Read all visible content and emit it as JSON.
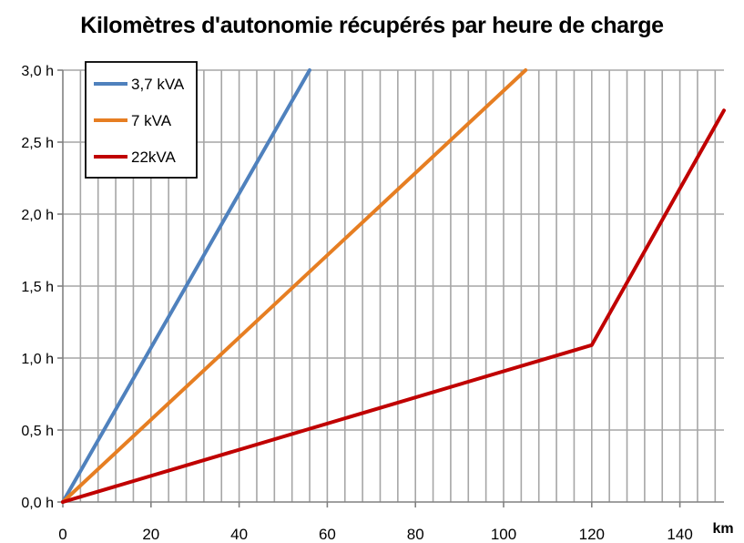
{
  "chart_data": {
    "type": "line",
    "title": "Kilomètres d'autonomie récupérés par heure de charge",
    "xlabel": "km",
    "ylabel": "",
    "xlim": [
      0,
      150
    ],
    "ylim": [
      0,
      3.0
    ],
    "x_ticks": [
      0,
      20,
      40,
      60,
      80,
      100,
      120,
      140
    ],
    "x_tick_labels": [
      "0",
      "20",
      "40",
      "60",
      "80",
      "100",
      "120",
      "140"
    ],
    "y_ticks": [
      0,
      0.5,
      1.0,
      1.5,
      2.0,
      2.5,
      3.0
    ],
    "y_tick_labels": [
      "0,0 h",
      "0,5 h",
      "1,0 h",
      "1,5 h",
      "2,0 h",
      "2,5 h",
      "3,0 h"
    ],
    "grid": true,
    "x_minor_gridline_step": 4,
    "legend_position": "top-left",
    "series": [
      {
        "name": "3,7 kVA",
        "color": "#4F81BD",
        "points": [
          [
            0,
            0
          ],
          [
            56,
            3.0
          ]
        ]
      },
      {
        "name": "7 kVA",
        "color": "#E67E22",
        "points": [
          [
            0,
            0
          ],
          [
            105,
            3.0
          ]
        ]
      },
      {
        "name": "22kVA",
        "color": "#C00000",
        "points": [
          [
            0,
            0
          ],
          [
            120,
            1.09
          ],
          [
            150,
            2.72
          ]
        ]
      }
    ]
  }
}
